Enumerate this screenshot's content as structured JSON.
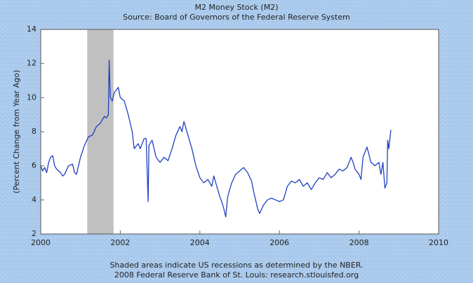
{
  "chart_data": {
    "type": "line",
    "title": "M2 Money Stock (M2)",
    "subtitle": "Source: Board of Governors of the Federal Reserve System",
    "y_label": "(Percent Change from Year Ago)",
    "footnotes": [
      "Shaded areas indicate US recessions as determined by the NBER.",
      "2008 Federal Reserve Bank of St. Louis: research.stlouisfed.org"
    ],
    "recessions": [
      {
        "start": 2001.17,
        "end": 2001.83
      }
    ],
    "recession_color": "#c0c0c0",
    "xlim": [
      2000,
      2010
    ],
    "xticks": [
      2000,
      2002,
      2004,
      2006,
      2008,
      2010
    ],
    "ylim": [
      2,
      14
    ],
    "yticks": [
      2,
      4,
      6,
      8,
      10,
      12,
      14
    ],
    "series": [
      {
        "name": "M2",
        "color": "#2040c0",
        "x": [
          2000.0,
          2000.05,
          2000.1,
          2000.15,
          2000.2,
          2000.25,
          2000.3,
          2000.35,
          2000.4,
          2000.5,
          2000.55,
          2000.6,
          2000.7,
          2000.8,
          2000.85,
          2000.9,
          2000.95,
          2001.0,
          2001.1,
          2001.2,
          2001.3,
          2001.4,
          2001.5,
          2001.6,
          2001.65,
          2001.7,
          2001.72,
          2001.75,
          2001.8,
          2001.85,
          2001.95,
          2002.0,
          2002.1,
          2002.2,
          2002.3,
          2002.35,
          2002.45,
          2002.5,
          2002.6,
          2002.65,
          2002.7,
          2002.72,
          2002.8,
          2002.9,
          2003.0,
          2003.1,
          2003.2,
          2003.3,
          2003.4,
          2003.5,
          2003.55,
          2003.6,
          2003.65,
          2003.7,
          2003.8,
          2003.9,
          2004.0,
          2004.1,
          2004.2,
          2004.3,
          2004.35,
          2004.4,
          2004.5,
          2004.55,
          2004.6,
          2004.65,
          2004.7,
          2004.8,
          2004.9,
          2005.0,
          2005.1,
          2005.2,
          2005.3,
          2005.35,
          2005.4,
          2005.45,
          2005.5,
          2005.6,
          2005.7,
          2005.8,
          2005.9,
          2006.0,
          2006.1,
          2006.2,
          2006.3,
          2006.4,
          2006.5,
          2006.6,
          2006.7,
          2006.8,
          2006.9,
          2007.0,
          2007.1,
          2007.2,
          2007.3,
          2007.4,
          2007.5,
          2007.6,
          2007.7,
          2007.8,
          2007.85,
          2007.9,
          2008.0,
          2008.05,
          2008.1,
          2008.2,
          2008.3,
          2008.4,
          2008.5,
          2008.55,
          2008.6,
          2008.65,
          2008.7,
          2008.72,
          2008.75,
          2008.8
        ],
        "values": [
          6.0,
          5.7,
          5.9,
          5.6,
          6.2,
          6.5,
          6.6,
          6.0,
          5.8,
          5.6,
          5.4,
          5.5,
          6.0,
          6.1,
          5.6,
          5.5,
          6.0,
          6.5,
          7.2,
          7.7,
          7.8,
          8.3,
          8.5,
          8.9,
          8.8,
          9.0,
          12.2,
          10.0,
          9.8,
          10.3,
          10.6,
          10.0,
          9.8,
          9.0,
          8.0,
          7.0,
          7.3,
          7.0,
          7.6,
          7.6,
          3.9,
          7.2,
          7.5,
          6.5,
          6.2,
          6.5,
          6.3,
          7.0,
          7.8,
          8.3,
          8.0,
          8.6,
          8.2,
          7.8,
          7.0,
          6.0,
          5.3,
          5.0,
          5.2,
          4.8,
          5.4,
          5.0,
          4.2,
          3.9,
          3.5,
          3.0,
          4.2,
          5.0,
          5.5,
          5.7,
          5.9,
          5.6,
          5.1,
          4.5,
          4.0,
          3.5,
          3.2,
          3.7,
          4.0,
          4.1,
          4.0,
          3.9,
          4.0,
          4.8,
          5.1,
          5.0,
          5.2,
          4.8,
          5.0,
          4.6,
          5.0,
          5.3,
          5.2,
          5.6,
          5.3,
          5.5,
          5.8,
          5.7,
          5.9,
          6.5,
          6.2,
          5.8,
          5.5,
          5.2,
          6.5,
          7.1,
          6.2,
          6.0,
          6.2,
          5.5,
          6.2,
          4.7,
          5.0,
          7.5,
          7.0,
          8.1
        ]
      }
    ]
  }
}
